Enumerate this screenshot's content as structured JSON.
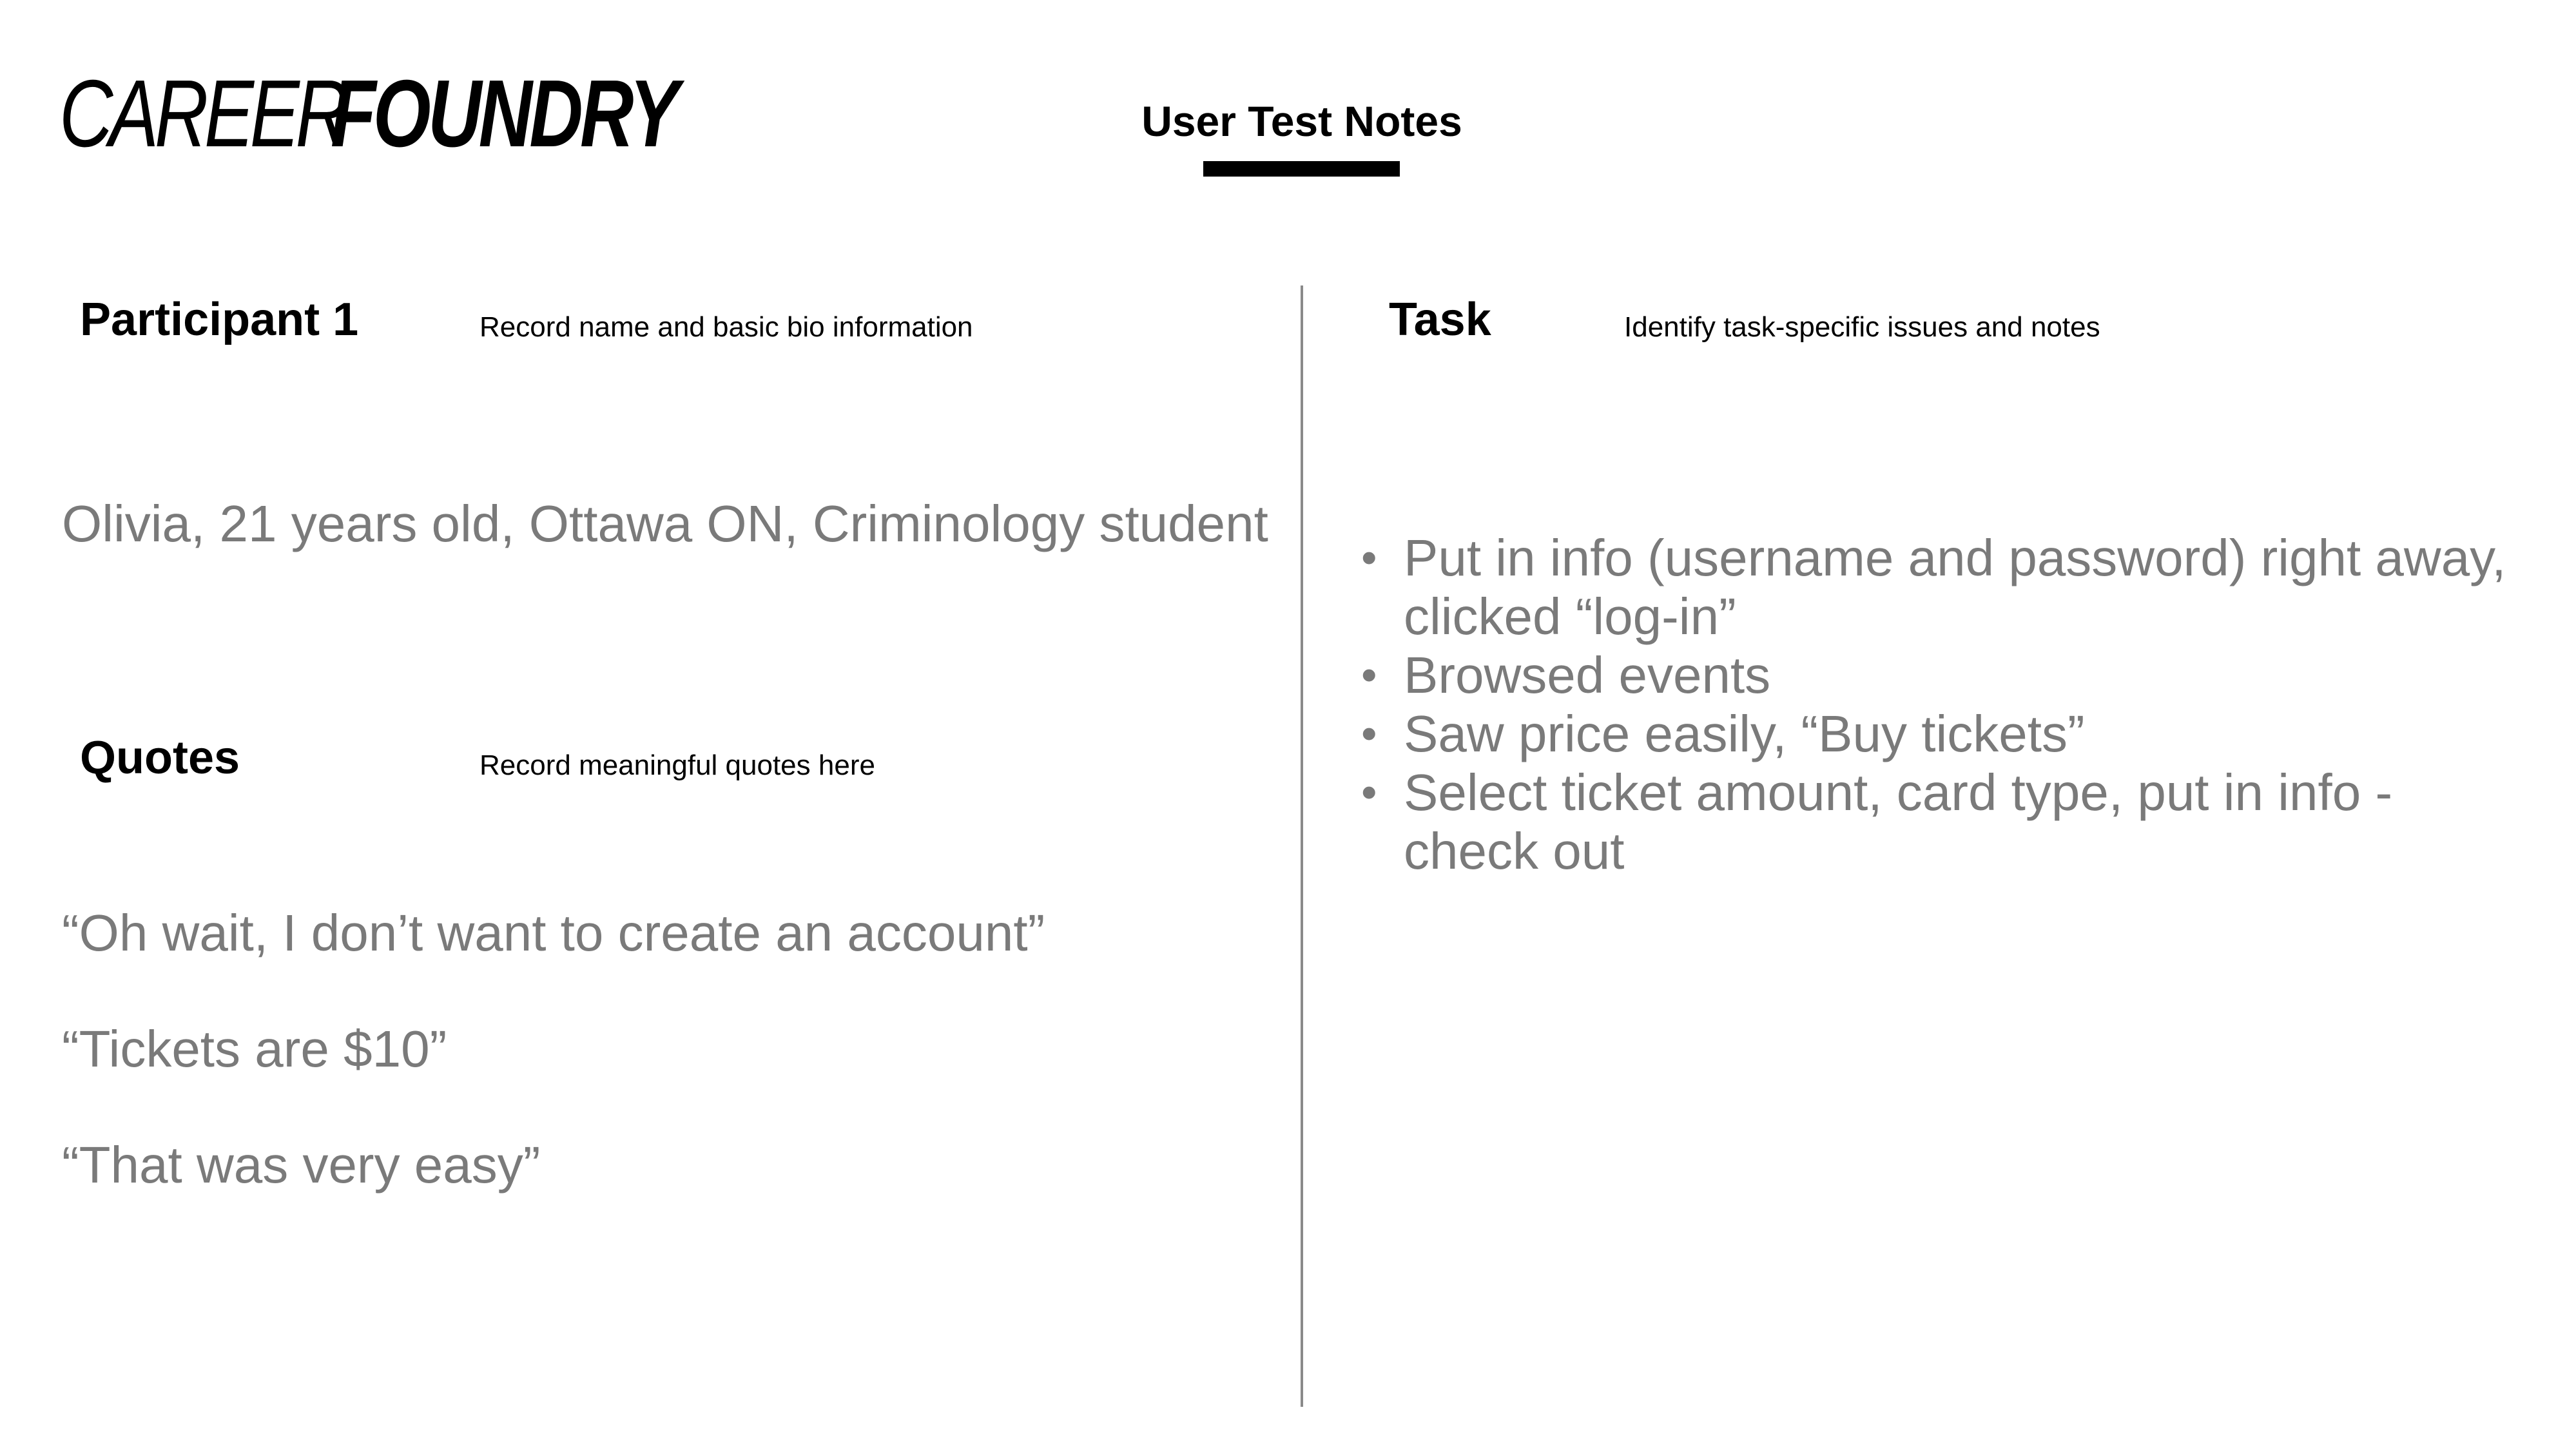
{
  "logo": {
    "thin": "CAREER",
    "bold": "FOUNDRY"
  },
  "header": {
    "title": "User Test Notes"
  },
  "participant": {
    "title": "Participant 1",
    "hint": "Record name and basic bio information",
    "bio": "Olivia, 21 years old, Ottawa ON, Criminology student"
  },
  "quotes": {
    "title": "Quotes",
    "hint": "Record meaningful quotes here",
    "items": [
      "“Oh wait, I don’t want to create an account”",
      "“Tickets are $10”",
      "“That was very easy”"
    ]
  },
  "task": {
    "title": "Task",
    "hint": "Identify task-specific issues and notes",
    "bullet_glyph": "•",
    "items": [
      "Put in info (username and password) right away, clicked “log-in”",
      "Browsed events",
      "Saw price easily, “Buy tickets”",
      "Select ticket amount, card type, put in info - check out"
    ]
  }
}
